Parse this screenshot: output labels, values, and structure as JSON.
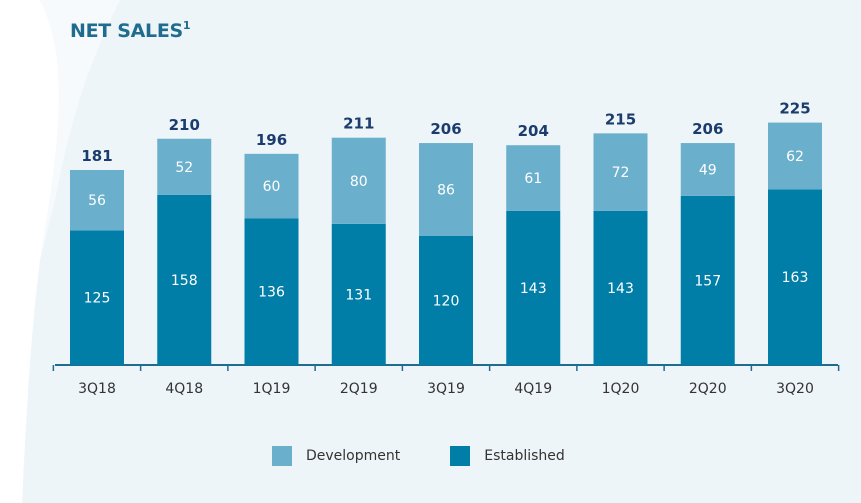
{
  "chart_data": {
    "type": "stacked-bar",
    "title": "NET SALES",
    "title_footnote": "1",
    "categories": [
      "3Q18",
      "4Q18",
      "1Q19",
      "2Q19",
      "3Q19",
      "4Q19",
      "1Q20",
      "2Q20",
      "3Q20"
    ],
    "series": [
      {
        "name": "Established",
        "color": "#007ea7",
        "values": [
          125,
          158,
          136,
          131,
          120,
          143,
          143,
          157,
          163
        ]
      },
      {
        "name": "Development",
        "color": "#6aafcc",
        "values": [
          56,
          52,
          60,
          80,
          86,
          61,
          72,
          49,
          62
        ]
      }
    ],
    "totals": [
      181,
      210,
      196,
      211,
      206,
      204,
      215,
      206,
      225
    ],
    "legend_position": "bottom",
    "grid": false,
    "ylim": [
      0,
      240
    ]
  }
}
